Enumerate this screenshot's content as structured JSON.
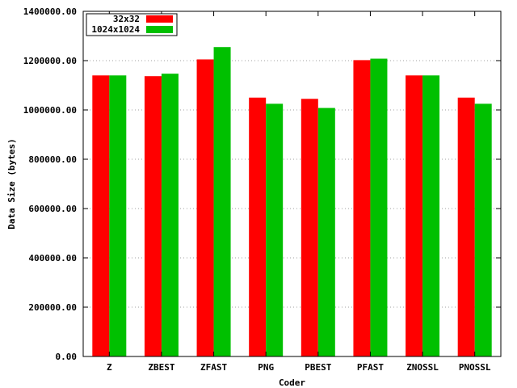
{
  "chart_data": {
    "type": "bar",
    "xlabel": "Coder",
    "ylabel": "Data Size (bytes)",
    "categories": [
      "Z",
      "ZBEST",
      "ZFAST",
      "PNG",
      "PBEST",
      "PFAST",
      "ZNOSSL",
      "PNOSSL"
    ],
    "series": [
      {
        "name": "32x32",
        "color": "#ff0000",
        "values": [
          1140000,
          1137000,
          1205000,
          1050000,
          1045000,
          1202000,
          1140000,
          1050000
        ]
      },
      {
        "name": "1024x1024",
        "color": "#00c000",
        "values": [
          1140000,
          1147000,
          1255000,
          1025000,
          1008000,
          1208000,
          1140000,
          1025000
        ]
      }
    ],
    "ylim": [
      0,
      1400000
    ],
    "yticks": [
      "0.00",
      "200000.00",
      "400000.00",
      "600000.00",
      "800000.00",
      "1000000.00",
      "1200000.00",
      "1400000.00"
    ],
    "ytick_values": [
      0,
      200000,
      400000,
      600000,
      800000,
      1000000,
      1200000,
      1400000
    ],
    "grid": true,
    "legend_position": "top-left"
  }
}
